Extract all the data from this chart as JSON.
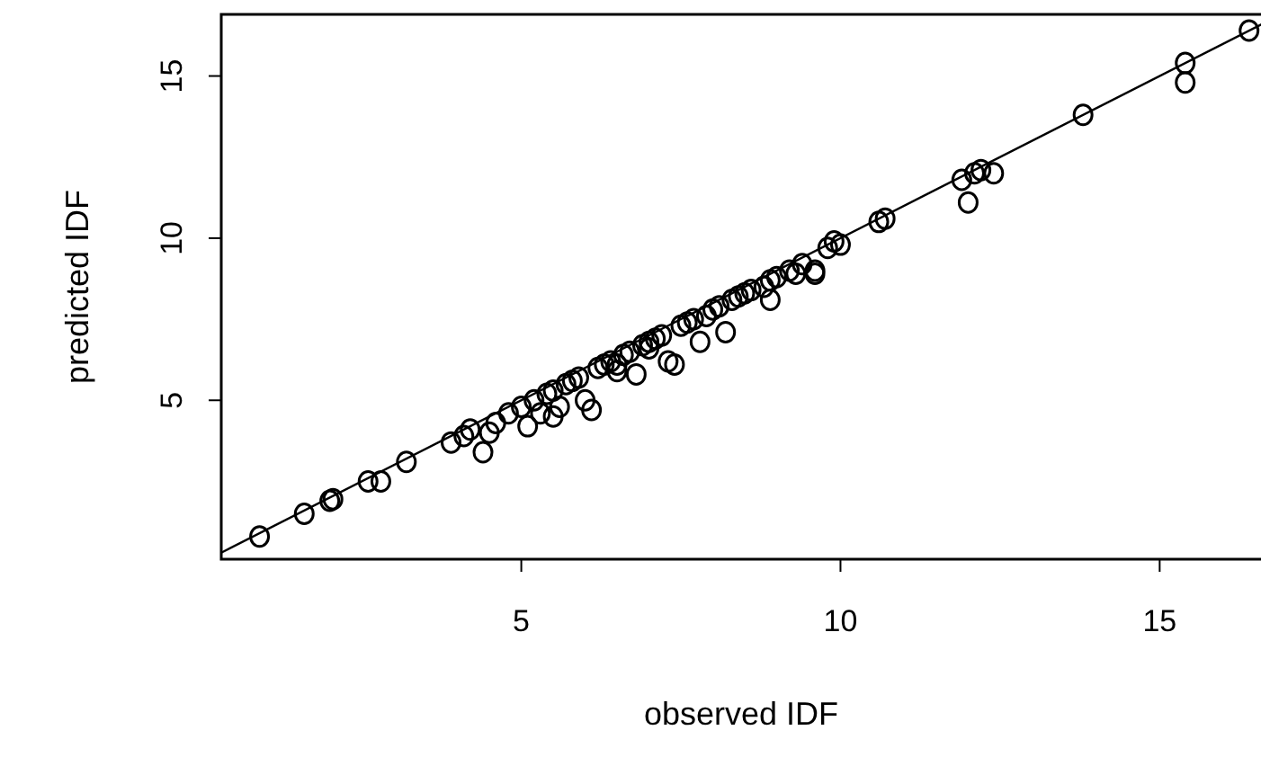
{
  "chart_data": {
    "type": "scatter",
    "xlabel": "observed IDF",
    "ylabel": "predicted IDF",
    "xlim": [
      0.3,
      16.7
    ],
    "ylim": [
      0.1,
      16.9
    ],
    "xticks": [
      5,
      10,
      15
    ],
    "yticks": [
      5,
      10,
      15
    ],
    "grid": false,
    "marker": "circle",
    "series": [
      {
        "color": "#000000",
        "x": [
          0.9,
          1.6,
          2.0,
          2.05,
          2.6,
          2.8,
          3.2,
          3.9,
          4.1,
          4.2,
          4.4,
          4.5,
          4.6,
          4.8,
          5.0,
          5.1,
          5.2,
          5.3,
          5.5,
          5.6,
          5.7,
          5.9,
          6.0,
          6.1,
          6.2,
          6.4,
          6.5,
          6.6,
          6.8,
          6.9,
          7.0,
          7.1,
          7.2,
          7.3,
          7.4,
          7.5,
          7.6,
          7.8,
          7.9,
          8.0,
          8.1,
          8.2,
          8.3,
          8.4,
          8.6,
          8.8,
          8.9,
          9.0,
          9.2,
          9.3,
          9.4,
          9.6,
          9.8,
          9.9,
          10.0,
          10.6,
          10.7,
          11.9,
          12.0,
          12.1,
          12.2,
          12.4,
          13.8,
          15.4,
          15.4,
          16.4,
          5.4,
          5.8,
          6.3,
          6.7,
          7.7,
          8.5,
          5.5,
          6.5,
          7.0,
          8.9,
          9.6
        ],
        "values": [
          0.8,
          1.5,
          1.9,
          1.95,
          2.5,
          2.5,
          3.1,
          3.7,
          3.9,
          4.1,
          3.4,
          4.0,
          4.3,
          4.6,
          4.8,
          4.2,
          5.0,
          4.6,
          5.3,
          4.8,
          5.5,
          5.7,
          5.0,
          4.7,
          6.0,
          6.2,
          6.1,
          6.4,
          5.8,
          6.7,
          6.8,
          6.9,
          7.0,
          6.2,
          6.1,
          7.3,
          7.4,
          6.8,
          7.6,
          7.8,
          7.9,
          7.1,
          8.1,
          8.2,
          8.4,
          8.5,
          8.7,
          8.8,
          9.0,
          8.9,
          9.2,
          9.0,
          9.7,
          9.9,
          9.8,
          10.5,
          10.6,
          11.8,
          11.1,
          12.0,
          12.1,
          12.0,
          13.8,
          15.4,
          14.8,
          16.4,
          5.2,
          5.6,
          6.1,
          6.5,
          7.5,
          8.3,
          4.5,
          5.9,
          6.6,
          8.1,
          8.9
        ]
      },
      {
        "type": "line",
        "marker": "none",
        "color": "#000000",
        "x": [
          0.3,
          16.7
        ],
        "values": [
          0.3,
          16.7
        ]
      }
    ]
  }
}
